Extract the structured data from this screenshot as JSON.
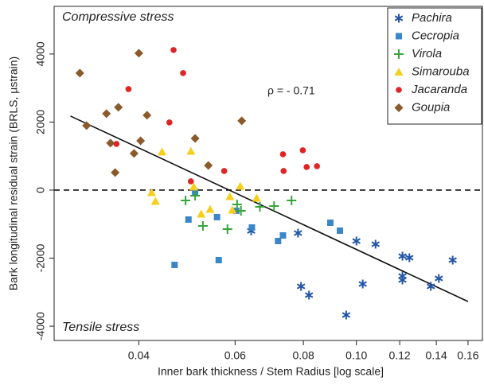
{
  "chart_data": {
    "type": "scatter",
    "x_label": "Inner bark thickness / Stem Radius [log scale]",
    "y_label": "Bark longitudinal residual strain (BRLS, µstrain)",
    "xscale": "log",
    "xlim": [
      0.028,
      0.17
    ],
    "ylim": [
      -4420,
      5400
    ],
    "xticks": [
      0.04,
      0.06,
      0.08,
      {
        "value": 0.1,
        "label": "0.10"
      },
      0.12,
      0.14,
      0.16
    ],
    "yticks": [
      4000,
      2000,
      0,
      -2000,
      -4000
    ],
    "reference_line": 0,
    "annotations": [
      "Compressive stress",
      "Tensile stress",
      "ρ = - 0.71"
    ],
    "legend_position": "upper right",
    "series": [
      {
        "name": "Pachira",
        "color": "#2356a6",
        "marker": "asterisk",
        "x": [
          0.0642,
          0.0782,
          0.0792,
          0.0819,
          0.0958,
          0.1,
          0.1027,
          0.1084,
          0.1214,
          0.1214,
          0.1214,
          0.125,
          0.1368,
          0.1415,
          0.15
        ],
        "values": [
          -1200,
          -1263,
          -2830,
          -3088,
          -3673,
          -1497,
          -2760,
          -1590,
          -1942,
          -2526,
          -2643,
          -1988,
          -2830,
          -2597,
          -2058
        ]
      },
      {
        "name": "Cecropia",
        "color": "#3a86c8",
        "marker": "square",
        "x": [
          0.0465,
          0.0493,
          0.0507,
          0.0556,
          0.056,
          0.0603,
          0.0644,
          0.0719,
          0.0734,
          0.0896,
          0.0933
        ],
        "values": [
          -2199,
          -866,
          -47,
          -795,
          -2058,
          -608,
          -1099,
          -1497,
          -1333,
          -959,
          -1193
        ]
      },
      {
        "name": "Virola",
        "color": "#35a53a",
        "marker": "plus",
        "x": [
          0.0487,
          0.0507,
          0.0524,
          0.0581,
          0.0605,
          0.0615,
          0.0666,
          0.0707,
          0.0761
        ],
        "values": [
          -304,
          -164,
          -1053,
          -1146,
          -421,
          -608,
          -491,
          -468,
          -304
        ]
      },
      {
        "name": "Simarouba",
        "color": "#f6cf1e",
        "marker": "triangle",
        "x": [
          0.0422,
          0.0429,
          0.0441,
          0.0498,
          0.0504,
          0.052,
          0.054,
          0.0587,
          0.0593,
          0.0613,
          0.0657
        ],
        "values": [
          -70,
          -327,
          1123,
          1146,
          94,
          -702,
          -561,
          -187,
          -585,
          117,
          -234
        ]
      },
      {
        "name": "Jacaranda",
        "color": "#e02424",
        "marker": "circle",
        "x": [
          0.0364,
          0.0383,
          0.0463,
          0.0482,
          0.0455,
          0.0498,
          0.0573,
          0.0734,
          0.0736,
          0.0798,
          0.0811,
          0.0847
        ],
        "values": [
          1357,
          2971,
          4117,
          3439,
          1988,
          257,
          561,
          1053,
          561,
          1170,
          678,
          702
        ]
      },
      {
        "name": "Goupia",
        "color": "#8b5a2b",
        "marker": "diamond",
        "x": [
          0.0312,
          0.0321,
          0.0349,
          0.0355,
          0.0367,
          0.0362,
          0.0392,
          0.0403,
          0.0414,
          0.04,
          0.0507,
          0.0536,
          0.0617
        ],
        "values": [
          3439,
          1895,
          2246,
          1380,
          2433,
          515,
          1076,
          1450,
          2199,
          4023,
          1520,
          725,
          2035
        ]
      }
    ],
    "trend_line": {
      "x": [
        0.03,
        0.16
      ],
      "values": [
        2175,
        -3275
      ]
    }
  }
}
